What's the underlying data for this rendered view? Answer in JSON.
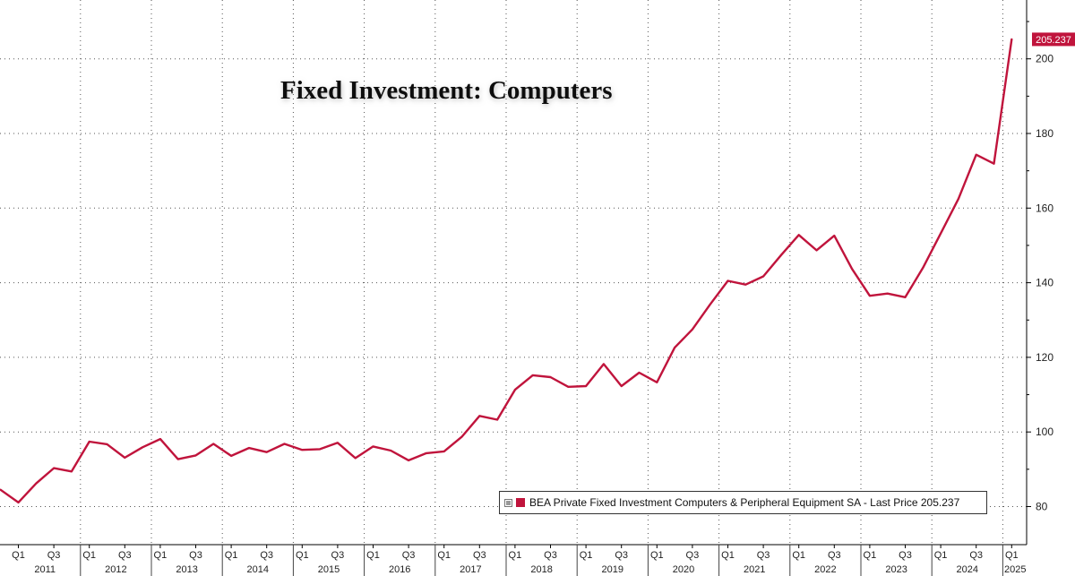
{
  "chart_data": {
    "type": "line",
    "title": "Fixed Investment: Computers",
    "ylim": [
      76,
      215
    ],
    "yticks": [
      80,
      100,
      120,
      140,
      160,
      180,
      200
    ],
    "x_start": "2011 Q1",
    "grid": true,
    "legend_position": "bottom-right",
    "colors": {
      "series": "#c0143c",
      "grid": "#555555",
      "tag_text": "#ffffff"
    },
    "year_labels": [
      "2011",
      "2012",
      "2013",
      "2014",
      "2015",
      "2016",
      "2017",
      "2018",
      "2019",
      "2020",
      "2021",
      "2022",
      "2023",
      "2024",
      "2025"
    ],
    "quarter_labels": [
      "Q1",
      "Q3"
    ],
    "last_value_label": "205.237",
    "series": [
      {
        "name": "BEA Private Fixed Investment Computers & Peripheral Equipment SA - Last Price 205.237",
        "x": [
          "2010 Q4",
          "2011 Q1",
          "2011 Q2",
          "2011 Q3",
          "2011 Q4",
          "2012 Q1",
          "2012 Q2",
          "2012 Q3",
          "2012 Q4",
          "2013 Q1",
          "2013 Q2",
          "2013 Q3",
          "2013 Q4",
          "2014 Q1",
          "2014 Q2",
          "2014 Q3",
          "2014 Q4",
          "2015 Q1",
          "2015 Q2",
          "2015 Q3",
          "2015 Q4",
          "2016 Q1",
          "2016 Q2",
          "2016 Q3",
          "2016 Q4",
          "2017 Q1",
          "2017 Q2",
          "2017 Q3",
          "2017 Q4",
          "2018 Q1",
          "2018 Q2",
          "2018 Q3",
          "2018 Q4",
          "2019 Q1",
          "2019 Q2",
          "2019 Q3",
          "2019 Q4",
          "2020 Q1",
          "2020 Q2",
          "2020 Q3",
          "2020 Q4",
          "2021 Q1",
          "2021 Q2",
          "2021 Q3",
          "2021 Q4",
          "2022 Q1",
          "2022 Q2",
          "2022 Q3",
          "2022 Q4",
          "2023 Q1",
          "2023 Q2",
          "2023 Q3",
          "2023 Q4",
          "2024 Q1",
          "2024 Q2",
          "2024 Q3",
          "2024 Q4",
          "2025 Q1"
        ],
        "values": [
          84.5,
          81.1,
          86.2,
          90.3,
          89.4,
          97.4,
          96.7,
          93.1,
          95.9,
          98.1,
          92.7,
          93.7,
          96.8,
          93.6,
          95.7,
          94.6,
          96.8,
          95.2,
          95.4,
          97.1,
          93.0,
          96.1,
          95.0,
          92.4,
          94.3,
          94.8,
          98.7,
          104.3,
          103.3,
          111.3,
          115.2,
          114.7,
          112.1,
          112.3,
          118.2,
          112.3,
          115.9,
          113.3,
          122.6,
          127.5,
          134.2,
          140.5,
          139.5,
          141.7,
          147.4,
          152.8,
          148.7,
          152.6,
          143.7,
          136.5,
          137.1,
          136.1,
          144.0,
          153.2,
          162.5,
          174.3,
          171.9,
          205.237
        ]
      }
    ]
  }
}
